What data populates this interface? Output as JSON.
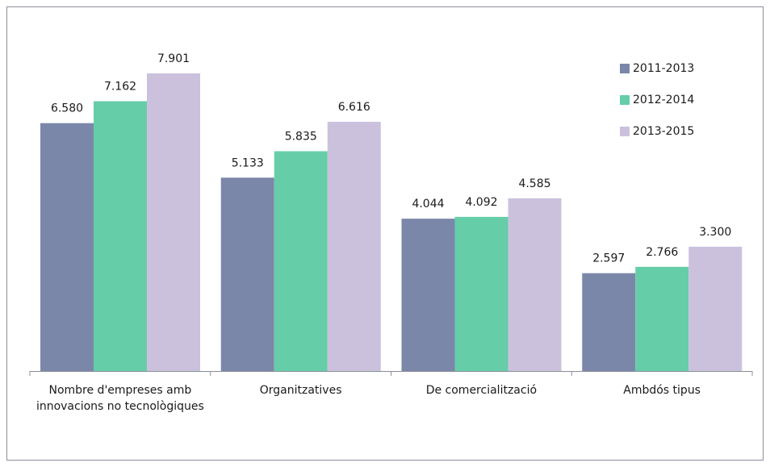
{
  "chart_data": {
    "type": "bar",
    "categories": [
      "Nombre d'empreses amb innovacions no tecnològiques",
      "Organitzatives",
      "De comercialització",
      "Ambdós tipus"
    ],
    "series": [
      {
        "name": "2011-2013",
        "color": "#7b87a9",
        "values": [
          6580,
          5133,
          4044,
          2597
        ],
        "value_labels": [
          "6.580",
          "5.133",
          "4.044",
          "2.597"
        ]
      },
      {
        "name": "2012-2014",
        "color": "#66cda9",
        "values": [
          7162,
          5835,
          4092,
          2766
        ],
        "value_labels": [
          "7.162",
          "5.835",
          "4.092",
          "2.766"
        ]
      },
      {
        "name": "2013-2015",
        "color": "#cbc1dd",
        "values": [
          7901,
          6616,
          4585,
          3300
        ],
        "value_labels": [
          "7.901",
          "6.616",
          "4.585",
          "3.300"
        ]
      }
    ],
    "legend": "top-right"
  }
}
